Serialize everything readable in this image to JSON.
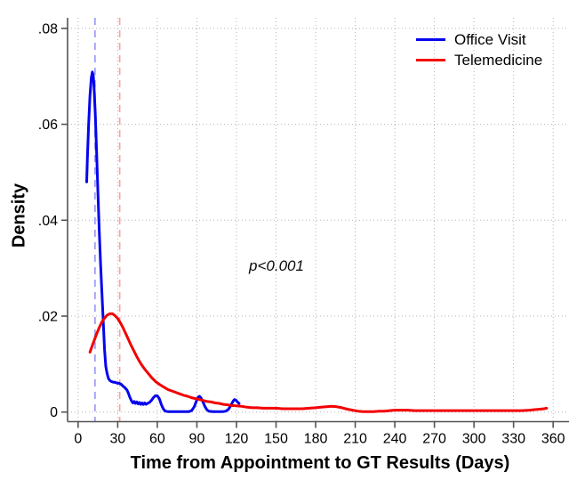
{
  "chart_data": {
    "type": "line",
    "title": "",
    "xlabel": "Time from Appointment to GT Results (Days)",
    "ylabel": "Density",
    "xlim": [
      -8,
      372
    ],
    "ylim": [
      -0.002,
      0.0822
    ],
    "x_ticks": [
      0,
      30,
      60,
      90,
      120,
      150,
      180,
      210,
      240,
      270,
      300,
      330,
      360
    ],
    "y_ticks": [
      {
        "v": 0,
        "label": "0"
      },
      {
        "v": 0.02,
        "label": ".02"
      },
      {
        "v": 0.04,
        "label": ".04"
      },
      {
        "v": 0.06,
        "label": ".06"
      },
      {
        "v": 0.08,
        "label": ".08"
      }
    ],
    "grid": "dotted-both-axes",
    "legend_position": "top-right",
    "annotation": {
      "text": "p<0.001",
      "x": 150,
      "y": 0.0303
    },
    "ref_lines": [
      {
        "name": "office-visit-median-line",
        "x": 12.8,
        "color": "#9c9cf7"
      },
      {
        "name": "telemedicine-median-line",
        "x": 31.5,
        "color": "#ffa0a0"
      }
    ],
    "series": [
      {
        "name": "Office Visit",
        "color": "#0505ee",
        "points": [
          [
            6.5,
            0.048
          ],
          [
            7,
            0.053
          ],
          [
            8,
            0.06
          ],
          [
            9,
            0.066
          ],
          [
            10,
            0.0697
          ],
          [
            10.8,
            0.0709
          ],
          [
            11.5,
            0.0702
          ],
          [
            12,
            0.068
          ],
          [
            13,
            0.062
          ],
          [
            14,
            0.054
          ],
          [
            15,
            0.046
          ],
          [
            16,
            0.038
          ],
          [
            17,
            0.031
          ],
          [
            18,
            0.025
          ],
          [
            19,
            0.019
          ],
          [
            20,
            0.013
          ],
          [
            21,
            0.0095
          ],
          [
            22,
            0.008
          ],
          [
            23,
            0.007
          ],
          [
            24,
            0.0066
          ],
          [
            25,
            0.0064
          ],
          [
            26,
            0.0063
          ],
          [
            27,
            0.0062
          ],
          [
            28,
            0.0062
          ],
          [
            29,
            0.0061
          ],
          [
            30,
            0.006
          ],
          [
            31,
            0.006
          ],
          [
            32,
            0.0059
          ],
          [
            33,
            0.0057
          ],
          [
            34,
            0.0054
          ],
          [
            35,
            0.0052
          ],
          [
            36,
            0.0049
          ],
          [
            37,
            0.0046
          ],
          [
            38,
            0.004
          ],
          [
            39,
            0.0032
          ],
          [
            40,
            0.0026
          ],
          [
            40.5,
            0.0023
          ],
          [
            41.5,
            0.0019
          ],
          [
            42.5,
            0.0022
          ],
          [
            43.5,
            0.0018
          ],
          [
            44.5,
            0.0021
          ],
          [
            45.5,
            0.0017
          ],
          [
            46.5,
            0.002
          ],
          [
            47.5,
            0.0016
          ],
          [
            48.5,
            0.0019
          ],
          [
            49.5,
            0.0016
          ],
          [
            50.5,
            0.0019
          ],
          [
            51.5,
            0.0016
          ],
          [
            52.5,
            0.0018
          ],
          [
            54,
            0.002
          ],
          [
            55.5,
            0.0024
          ],
          [
            57,
            0.003
          ],
          [
            58.5,
            0.0034
          ],
          [
            60,
            0.0034
          ],
          [
            61.5,
            0.0028
          ],
          [
            63,
            0.0016
          ],
          [
            64.5,
            0.0007
          ],
          [
            66,
            0.0002
          ],
          [
            68,
            0.0001
          ],
          [
            72,
            0.0001
          ],
          [
            78,
            0.0001
          ],
          [
            84,
            0.0001
          ],
          [
            86,
            0.0003
          ],
          [
            88,
            0.0011
          ],
          [
            89.5,
            0.0022
          ],
          [
            91,
            0.0031
          ],
          [
            92,
            0.0033
          ],
          [
            93,
            0.003
          ],
          [
            94.5,
            0.0022
          ],
          [
            96,
            0.0012
          ],
          [
            97.5,
            0.0005
          ],
          [
            99,
            0.0002
          ],
          [
            102,
            0.0001
          ],
          [
            106,
            0.0001
          ],
          [
            110,
            0.0001
          ],
          [
            112,
            0.0002
          ],
          [
            114,
            0.0006
          ],
          [
            116,
            0.0015
          ],
          [
            117.5,
            0.0023
          ],
          [
            118.5,
            0.0026
          ],
          [
            119.5,
            0.0025
          ],
          [
            120.5,
            0.0022
          ],
          [
            121.5,
            0.0019
          ],
          [
            122,
            0.0018
          ]
        ]
      },
      {
        "name": "Telemedicine",
        "color": "#f30000",
        "points": [
          [
            9,
            0.0125
          ],
          [
            10,
            0.0133
          ],
          [
            12,
            0.0148
          ],
          [
            14,
            0.0163
          ],
          [
            16,
            0.0176
          ],
          [
            18,
            0.0188
          ],
          [
            20,
            0.0196
          ],
          [
            22,
            0.0202
          ],
          [
            24,
            0.0205
          ],
          [
            26,
            0.0205
          ],
          [
            28,
            0.0201
          ],
          [
            30,
            0.0195
          ],
          [
            32,
            0.0186
          ],
          [
            34,
            0.0176
          ],
          [
            36,
            0.0164
          ],
          [
            38,
            0.0152
          ],
          [
            40,
            0.014
          ],
          [
            42,
            0.0129
          ],
          [
            44,
            0.0118
          ],
          [
            46,
            0.0108
          ],
          [
            48,
            0.0099
          ],
          [
            50,
            0.0091
          ],
          [
            53,
            0.0081
          ],
          [
            56,
            0.0071
          ],
          [
            59,
            0.0063
          ],
          [
            62,
            0.0057
          ],
          [
            65,
            0.0052
          ],
          [
            68,
            0.0047
          ],
          [
            71,
            0.0044
          ],
          [
            74,
            0.0041
          ],
          [
            77,
            0.0038
          ],
          [
            80,
            0.0035
          ],
          [
            83,
            0.0033
          ],
          [
            86,
            0.003
          ],
          [
            89,
            0.0028
          ],
          [
            92,
            0.0026
          ],
          [
            95,
            0.0024
          ],
          [
            98,
            0.0022
          ],
          [
            101,
            0.0021
          ],
          [
            104,
            0.0019
          ],
          [
            107,
            0.0018
          ],
          [
            110,
            0.0016
          ],
          [
            113,
            0.0015
          ],
          [
            116,
            0.0014
          ],
          [
            120,
            0.0013
          ],
          [
            124,
            0.0012
          ],
          [
            128,
            0.001
          ],
          [
            132,
            0.0009
          ],
          [
            136,
            0.0009
          ],
          [
            140,
            0.0008
          ],
          [
            145,
            0.0008
          ],
          [
            150,
            0.0008
          ],
          [
            155,
            0.0007
          ],
          [
            160,
            0.0007
          ],
          [
            165,
            0.0007
          ],
          [
            170,
            0.0007
          ],
          [
            175,
            0.0008
          ],
          [
            180,
            0.0009
          ],
          [
            184,
            0.001
          ],
          [
            188,
            0.0011
          ],
          [
            192,
            0.0012
          ],
          [
            196,
            0.0011
          ],
          [
            200,
            0.0009
          ],
          [
            204,
            0.0006
          ],
          [
            208,
            0.0004
          ],
          [
            212,
            0.0002
          ],
          [
            216,
            0.0001
          ],
          [
            220,
            0.0001
          ],
          [
            224,
            0.0001
          ],
          [
            228,
            0.0002
          ],
          [
            232,
            0.0002
          ],
          [
            236,
            0.0003
          ],
          [
            240,
            0.0004
          ],
          [
            245,
            0.0004
          ],
          [
            250,
            0.0004
          ],
          [
            255,
            0.0003
          ],
          [
            260,
            0.0003
          ],
          [
            270,
            0.0003
          ],
          [
            280,
            0.0003
          ],
          [
            290,
            0.0003
          ],
          [
            300,
            0.0003
          ],
          [
            310,
            0.0003
          ],
          [
            320,
            0.0003
          ],
          [
            330,
            0.0003
          ],
          [
            336,
            0.0003
          ],
          [
            342,
            0.0004
          ],
          [
            346,
            0.0005
          ],
          [
            350,
            0.0006
          ],
          [
            353,
            0.0007
          ],
          [
            355,
            0.0008
          ]
        ]
      }
    ]
  },
  "colors": {
    "grid": "#b3b3b3",
    "axis": "#545454",
    "text": "#000000",
    "background": "#ffffff"
  }
}
